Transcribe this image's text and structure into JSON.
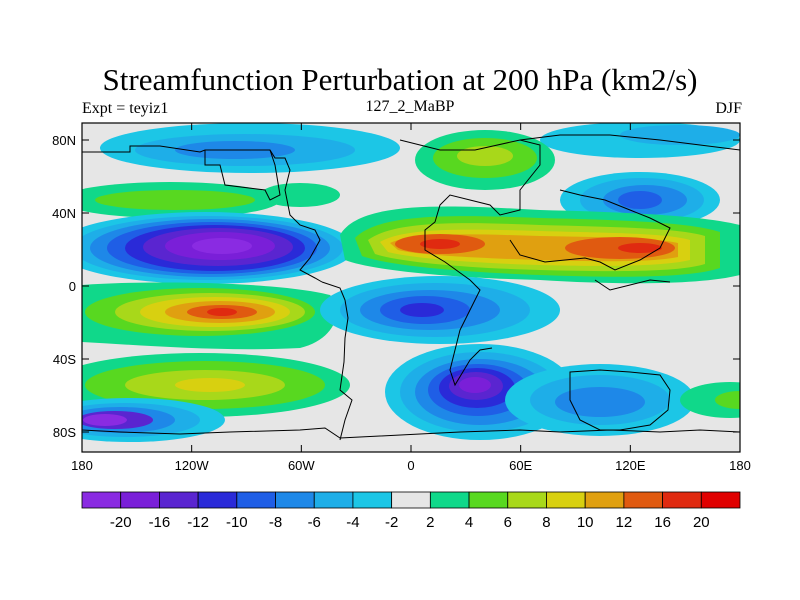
{
  "title": "Streamfunction Perturbation at 200 hPa (km2/s)",
  "subtitle_left": "Expt = teyiz1",
  "subtitle_center": "127_2_MaBP",
  "subtitle_right": "DJF",
  "lat_ticks": [
    "80N",
    "40N",
    "0",
    "40S",
    "80S"
  ],
  "lon_ticks": [
    "180",
    "120W",
    "60W",
    "0",
    "60E",
    "120E",
    "180"
  ],
  "colorbar": {
    "colors": [
      "#8a2be2",
      "#7a1fd8",
      "#5a25d0",
      "#2a2ad8",
      "#1f5ee6",
      "#1e88e8",
      "#1eaee8",
      "#1cc6e6",
      "#e6e6e6",
      "#10d88a",
      "#58d820",
      "#a8d81a",
      "#d8d010",
      "#e0a010",
      "#e05a10",
      "#e02a10",
      "#e00000"
    ],
    "labels": [
      "-20",
      "-16",
      "-12",
      "-10",
      "-8",
      "-6",
      "-4",
      "-2",
      "2",
      "4",
      "6",
      "8",
      "10",
      "12",
      "16",
      "20"
    ]
  }
}
